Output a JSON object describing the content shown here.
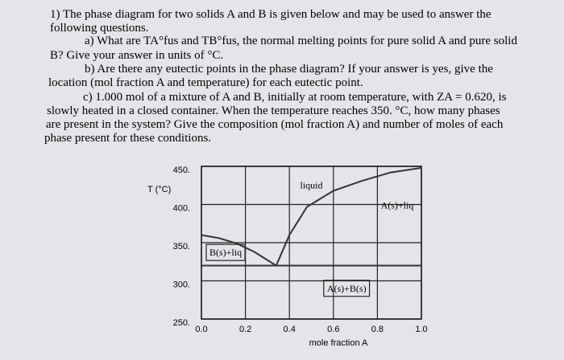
{
  "question": {
    "lines": [
      "1) The phase diagram for two solids A and B is given below and may be used to answer the",
      "following questions.",
      "a) What are TA°fus and TB°fus, the normal melting points for pure solid A and pure solid",
      "B? Give your answer in units of °C.",
      "b) Are there any eutectic points in the phase diagram? If your answer is yes, give the",
      "location (mol fraction A and temperature) for each eutectic point.",
      "c) 1.000 mol of a mixture of A and B, initially at room temperature, with ZA = 0.620, is",
      "slowly heated in a closed container. When the temperature reaches 350. °C, how many phases",
      "are present in the system? Give the composition (mol fraction A) and number of moles of each",
      "phase present for these conditions."
    ]
  },
  "chart_data": {
    "type": "phase-diagram",
    "ylabel": "T (°C)",
    "xlabel": "mole fraction A",
    "xlim": [
      0,
      1
    ],
    "ylim": [
      250,
      450
    ],
    "xticks": [
      {
        "value": 0,
        "label": "0.0"
      },
      {
        "value": 0.2,
        "label": "0.2"
      },
      {
        "value": 0.4,
        "label": "0.4"
      },
      {
        "value": 0.6,
        "label": "0.6"
      },
      {
        "value": 0.8,
        "label": "0.8"
      },
      {
        "value": 1,
        "label": "1.0"
      }
    ],
    "yticks": [
      {
        "value": 250,
        "label": "250."
      },
      {
        "value": 300,
        "label": "300."
      },
      {
        "value": 350,
        "label": "350."
      },
      {
        "value": 400,
        "label": "400."
      },
      {
        "value": 450,
        "label": "450."
      }
    ],
    "grid": true,
    "color": "#333333",
    "curves": [
      {
        "x": [
          0,
          0.08,
          0.16,
          0.24,
          0.34
        ],
        "y": [
          360,
          356,
          349,
          338,
          320
        ]
      },
      {
        "x": [
          0.34,
          0.4,
          0.48,
          0.6,
          0.73,
          0.86,
          1
        ],
        "y": [
          320,
          360,
          397,
          418,
          431,
          442,
          448
        ]
      },
      {
        "x": [
          0,
          1
        ],
        "y": [
          320,
          320
        ]
      }
    ],
    "regions": [
      {
        "label": "liquid",
        "x": 0.5,
        "y": 421,
        "boxed": false
      },
      {
        "label": "A(s)+liq",
        "x": 0.89,
        "y": 395,
        "boxed": false
      },
      {
        "label": "B(s)+liq",
        "x": 0.11,
        "y": 333,
        "boxed": true
      },
      {
        "label": "A(s)+B(s)",
        "x": 0.66,
        "y": 286,
        "boxed": true
      }
    ]
  }
}
